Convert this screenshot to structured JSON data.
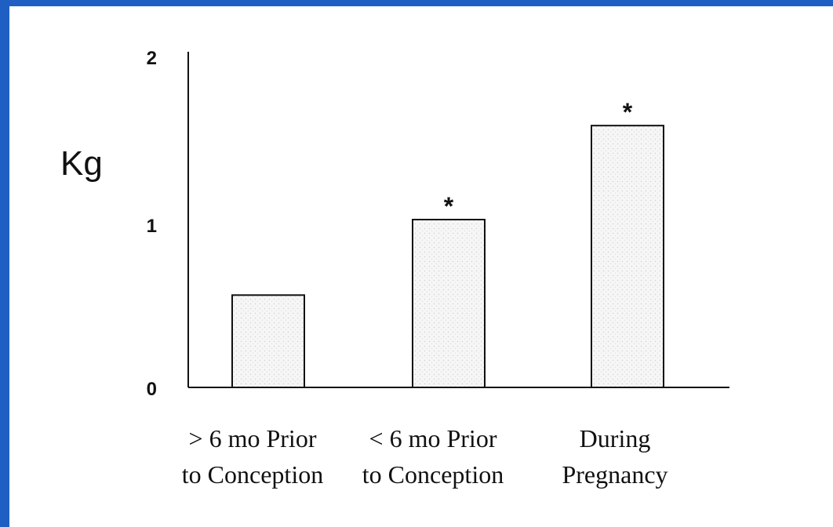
{
  "chart_data": {
    "type": "bar",
    "categories": [
      [
        "> 6 mo Prior",
        "to Conception"
      ],
      [
        "< 6 mo Prior",
        "to Conception"
      ],
      [
        "During",
        "Pregnancy"
      ]
    ],
    "values": [
      0.55,
      1.0,
      1.56
    ],
    "significance": [
      "",
      "*",
      "*"
    ],
    "ylabel": "Kg",
    "yticks": [
      "0",
      "1",
      "2"
    ],
    "ylim": [
      0,
      2
    ],
    "grid": false,
    "legend": "none"
  },
  "colors": {
    "frame_border": "#1f5fc4",
    "background": "#ffffff",
    "bar_fill": "#ebebeb",
    "ink": "#111111"
  }
}
